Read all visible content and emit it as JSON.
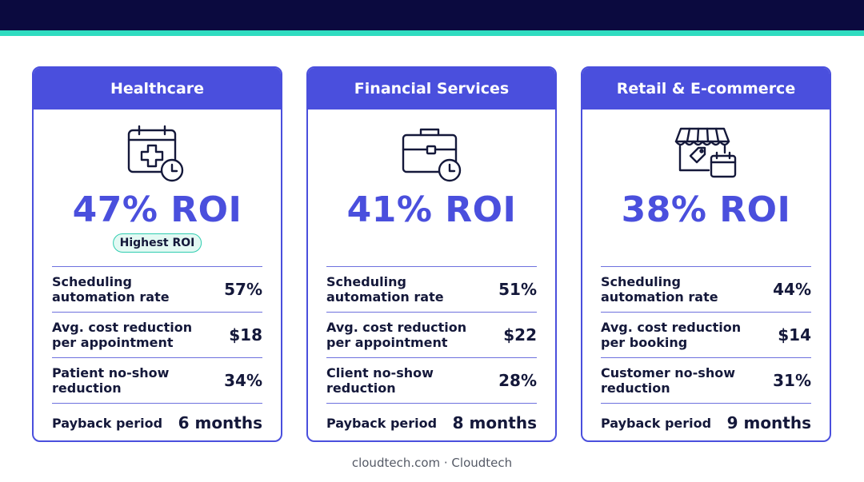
{
  "footer": "cloudtech.com · Cloudtech",
  "colors": {
    "accent": "#4a4fdd",
    "teal": "#2fdcc0",
    "navy": "#0b0a3f"
  },
  "cards": [
    {
      "title": "Healthcare",
      "icon": "calendar-medical-clock-icon",
      "roi": "47% ROI",
      "badge": "Highest ROI",
      "metrics": [
        {
          "label": "Scheduling automation rate",
          "value": "57%"
        },
        {
          "label": "Avg. cost reduction per appointment",
          "value": "$18"
        },
        {
          "label": "Patient no-show reduction",
          "value": "34%"
        },
        {
          "label": "Payback period",
          "value": "6 months"
        }
      ]
    },
    {
      "title": "Financial Services",
      "icon": "briefcase-clock-icon",
      "roi": "41% ROI",
      "metrics": [
        {
          "label": "Scheduling automation rate",
          "value": "51%"
        },
        {
          "label": "Avg. cost reduction per appointment",
          "value": "$22"
        },
        {
          "label": "Client no-show reduction",
          "value": "28%"
        },
        {
          "label": "Payback period",
          "value": "8 months"
        }
      ]
    },
    {
      "title": "Retail & E-commerce",
      "icon": "storefront-calendar-icon",
      "roi": "38% ROI",
      "metrics": [
        {
          "label": "Scheduling automation rate",
          "value": "44%"
        },
        {
          "label": "Avg. cost reduction per booking",
          "value": "$14"
        },
        {
          "label": "Customer no-show reduction",
          "value": "31%"
        },
        {
          "label": "Payback period",
          "value": "9 months"
        }
      ]
    }
  ]
}
